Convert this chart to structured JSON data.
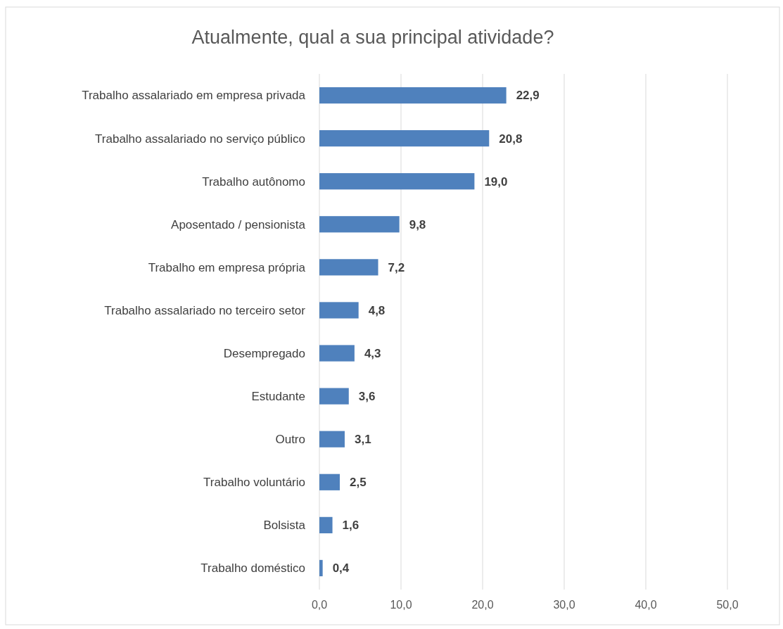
{
  "chart_data": {
    "type": "bar",
    "orientation": "horizontal",
    "title": "Atualmente, qual a sua principal atividade?",
    "categories": [
      "Trabalho assalariado em empresa privada",
      "Trabalho assalariado no serviço público",
      "Trabalho autônomo",
      "Aposentado / pensionista",
      "Trabalho em empresa própria",
      "Trabalho assalariado no terceiro setor",
      "Desempregado",
      "Estudante",
      "Outro",
      "Trabalho voluntário",
      "Bolsista",
      "Trabalho doméstico"
    ],
    "values": [
      22.9,
      20.8,
      19.0,
      9.8,
      7.2,
      4.8,
      4.3,
      3.6,
      3.1,
      2.5,
      1.6,
      0.4
    ],
    "value_labels": [
      "22,9",
      "20,8",
      "19,0",
      "9,8",
      "7,2",
      "4,8",
      "4,3",
      "3,6",
      "3,1",
      "2,5",
      "1,6",
      "0,4"
    ],
    "color": "#4f81bd",
    "xlim": [
      0,
      50
    ],
    "xticks": [
      {
        "value": 0,
        "label": "0,0"
      },
      {
        "value": 10,
        "label": "10,0"
      },
      {
        "value": 20,
        "label": "20,0"
      },
      {
        "value": 30,
        "label": "30,0"
      },
      {
        "value": 40,
        "label": "40,0"
      },
      {
        "value": 50,
        "label": "50,0"
      }
    ],
    "grid": "x"
  }
}
